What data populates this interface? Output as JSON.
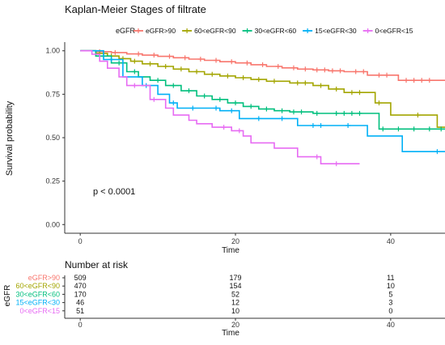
{
  "chart_data": [
    {
      "type": "line",
      "subtype": "step",
      "title": "Kaplan-Meier Stages of filtrate",
      "xlabel": "Time",
      "ylabel": "Survival probability",
      "xlim": [
        -2,
        47
      ],
      "ylim": [
        -0.05,
        1.05
      ],
      "x_ticks": [
        0,
        20,
        40
      ],
      "y_ticks": [
        "0.00",
        "0.25",
        "0.50",
        "0.75",
        "1.00"
      ],
      "grid": false,
      "legend_title": "eGFR",
      "legend_position": "top",
      "annotation": "p < 0.0001",
      "series": [
        {
          "name": "eGFR>90",
          "color": "#F8766D",
          "steps": [
            [
              0,
              1.0
            ],
            [
              2,
              0.995
            ],
            [
              4,
              0.99
            ],
            [
              6,
              0.982
            ],
            [
              8,
              0.975
            ],
            [
              10,
              0.968
            ],
            [
              12,
              0.96
            ],
            [
              14,
              0.952
            ],
            [
              16,
              0.945
            ],
            [
              18,
              0.937
            ],
            [
              20,
              0.93
            ],
            [
              22,
              0.92
            ],
            [
              24,
              0.91
            ],
            [
              26,
              0.902
            ],
            [
              28,
              0.895
            ],
            [
              30,
              0.89
            ],
            [
              32,
              0.885
            ],
            [
              34,
              0.88
            ],
            [
              37,
              0.86
            ],
            [
              40,
              0.86
            ],
            [
              41,
              0.83
            ],
            [
              47,
              0.83
            ]
          ],
          "censor": [
            2.5,
            4.5,
            7.5,
            9.5,
            11.5,
            13.5,
            15.5,
            17.5,
            19.5,
            21.5,
            23.5,
            25.5,
            27.5,
            29,
            30.5,
            31.5,
            32.5,
            33.5,
            35.5,
            36.5,
            38.5,
            39.5,
            42,
            43,
            44,
            45
          ]
        },
        {
          "name": "60<eGFR<90",
          "color": "#A3A500",
          "steps": [
            [
              0,
              1.0
            ],
            [
              2,
              0.985
            ],
            [
              3.5,
              0.97
            ],
            [
              5,
              0.955
            ],
            [
              6.5,
              0.94
            ],
            [
              8,
              0.925
            ],
            [
              10,
              0.91
            ],
            [
              12,
              0.895
            ],
            [
              14,
              0.88
            ],
            [
              16,
              0.865
            ],
            [
              18,
              0.855
            ],
            [
              20,
              0.845
            ],
            [
              22,
              0.835
            ],
            [
              24,
              0.825
            ],
            [
              27,
              0.815
            ],
            [
              30,
              0.8
            ],
            [
              32,
              0.78
            ],
            [
              34,
              0.76
            ],
            [
              37,
              0.76
            ],
            [
              38,
              0.7
            ],
            [
              40,
              0.63
            ],
            [
              44,
              0.63
            ],
            [
              46,
              0.56
            ],
            [
              47,
              0.56
            ]
          ],
          "censor": [
            2.5,
            4,
            5.5,
            7,
            9,
            11,
            13,
            15,
            17,
            19,
            21,
            23,
            25,
            28,
            29,
            31,
            33,
            35,
            36,
            38.5,
            43.5
          ]
        },
        {
          "name": "30<eGFR<60",
          "color": "#00BF7D",
          "steps": [
            [
              0,
              1.0
            ],
            [
              2,
              0.97
            ],
            [
              4,
              0.93
            ],
            [
              6,
              0.88
            ],
            [
              7.5,
              0.85
            ],
            [
              9,
              0.83
            ],
            [
              11,
              0.8
            ],
            [
              13,
              0.77
            ],
            [
              15,
              0.74
            ],
            [
              17,
              0.72
            ],
            [
              19,
              0.7
            ],
            [
              21,
              0.68
            ],
            [
              23,
              0.665
            ],
            [
              25,
              0.655
            ],
            [
              27,
              0.648
            ],
            [
              30,
              0.64
            ],
            [
              32,
              0.64
            ],
            [
              34,
              0.64
            ],
            [
              37,
              0.64
            ],
            [
              38.5,
              0.55
            ],
            [
              47,
              0.55
            ]
          ],
          "censor": [
            3,
            5,
            7,
            10,
            12,
            14,
            16,
            18,
            20,
            22,
            24,
            26,
            27.5,
            28.5,
            30.5,
            33,
            34,
            35,
            36,
            39,
            41,
            43,
            45,
            46.5
          ]
        },
        {
          "name": "15<eGFR<30",
          "color": "#00B0F6",
          "steps": [
            [
              0,
              1.0
            ],
            [
              3,
              0.95
            ],
            [
              5.5,
              0.85
            ],
            [
              8,
              0.8
            ],
            [
              10,
              0.75
            ],
            [
              11.5,
              0.7
            ],
            [
              12.5,
              0.67
            ],
            [
              16,
              0.67
            ],
            [
              18,
              0.655
            ],
            [
              20,
              0.655
            ],
            [
              20.5,
              0.61
            ],
            [
              25,
              0.61
            ],
            [
              28,
              0.57
            ],
            [
              36,
              0.57
            ],
            [
              37,
              0.51
            ],
            [
              41,
              0.51
            ],
            [
              41.5,
              0.42
            ],
            [
              47,
              0.42
            ]
          ],
          "censor": [
            4,
            8.5,
            12,
            14.5,
            17.5,
            19.5,
            23,
            26,
            30,
            31,
            34.5,
            46
          ]
        },
        {
          "name": "0<eGFR<15",
          "color": "#E76BF3",
          "steps": [
            [
              0,
              1.0
            ],
            [
              1.5,
              0.98
            ],
            [
              2.5,
              0.94
            ],
            [
              3.5,
              0.9
            ],
            [
              5,
              0.85
            ],
            [
              6,
              0.8
            ],
            [
              8,
              0.8
            ],
            [
              9,
              0.72
            ],
            [
              10,
              0.72
            ],
            [
              11,
              0.67
            ],
            [
              12,
              0.63
            ],
            [
              14,
              0.6
            ],
            [
              15,
              0.58
            ],
            [
              17,
              0.56
            ],
            [
              19.5,
              0.54
            ],
            [
              21,
              0.51
            ],
            [
              22,
              0.47
            ],
            [
              25,
              0.44
            ],
            [
              28,
              0.39
            ],
            [
              30,
              0.39
            ],
            [
              31,
              0.35
            ],
            [
              36,
              0.35
            ]
          ],
          "censor": [
            7,
            9.5,
            18.5,
            20.5,
            30.5,
            33
          ]
        }
      ]
    },
    {
      "type": "table",
      "title": "Number at risk",
      "ylabel": "eGFR",
      "xlabel": "Time",
      "x_ticks": [
        0,
        20,
        40
      ],
      "rows": [
        {
          "label": "eGFR>90",
          "color": "#F8766D",
          "values": [
            "509",
            "179",
            "11"
          ]
        },
        {
          "label": "60<eGFR<90",
          "color": "#A3A500",
          "values": [
            "470",
            "154",
            "10"
          ]
        },
        {
          "label": "30<eGFR<60",
          "color": "#00BF7D",
          "values": [
            "170",
            "52",
            "5"
          ]
        },
        {
          "label": "15<eGFR<30",
          "color": "#00B0F6",
          "values": [
            "46",
            "12",
            "3"
          ]
        },
        {
          "label": "0<eGFR<15",
          "color": "#E76BF3",
          "values": [
            "51",
            "10",
            "0"
          ]
        }
      ]
    }
  ]
}
